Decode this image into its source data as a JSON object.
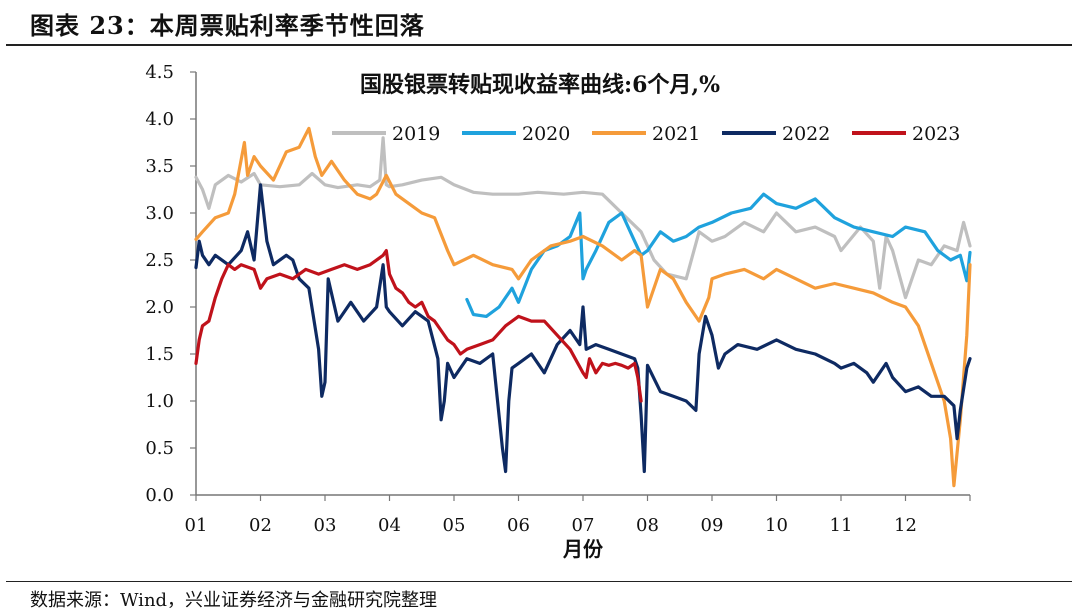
{
  "figure_title": "图表 23：本周票贴利率季节性回落",
  "source_note": "数据来源：Wind，兴业证券经济与金融研究院整理",
  "chart_data": {
    "type": "line",
    "title": "国股银票转贴现收益率曲线:6个月,%",
    "xlabel": "月份",
    "ylabel": "",
    "ylim": [
      0,
      4.5
    ],
    "xlim": [
      1,
      13
    ],
    "yticks": [
      "0.0",
      "0.5",
      "1.0",
      "1.5",
      "2.0",
      "2.5",
      "3.0",
      "3.5",
      "4.0",
      "4.5"
    ],
    "xticks": [
      "01",
      "02",
      "03",
      "04",
      "05",
      "06",
      "07",
      "08",
      "09",
      "10",
      "11",
      "12"
    ],
    "grid": false,
    "legend_position": "top",
    "series": [
      {
        "name": "2019",
        "color": "#bfbfbf",
        "x": [
          1.0,
          1.1,
          1.2,
          1.3,
          1.5,
          1.7,
          1.9,
          2.0,
          2.3,
          2.6,
          2.8,
          3.0,
          3.2,
          3.5,
          3.7,
          3.85,
          3.9,
          3.95,
          4.0,
          4.2,
          4.5,
          4.8,
          5.0,
          5.3,
          5.6,
          6.0,
          6.3,
          6.7,
          7.0,
          7.3,
          7.6,
          7.9,
          8.1,
          8.3,
          8.6,
          8.8,
          9.0,
          9.2,
          9.5,
          9.8,
          10.0,
          10.3,
          10.6,
          10.9,
          11.0,
          11.3,
          11.5,
          11.6,
          11.7,
          11.8,
          12.0,
          12.2,
          12.4,
          12.6,
          12.8,
          12.9,
          13.0
        ],
        "values": [
          3.38,
          3.25,
          3.05,
          3.3,
          3.4,
          3.33,
          3.42,
          3.3,
          3.28,
          3.3,
          3.42,
          3.3,
          3.27,
          3.3,
          3.28,
          3.35,
          3.8,
          3.3,
          3.28,
          3.3,
          3.35,
          3.38,
          3.3,
          3.22,
          3.2,
          3.2,
          3.22,
          3.2,
          3.22,
          3.2,
          3.0,
          2.8,
          2.5,
          2.35,
          2.3,
          2.8,
          2.7,
          2.75,
          2.9,
          2.8,
          3.0,
          2.8,
          2.85,
          2.75,
          2.6,
          2.85,
          2.7,
          2.2,
          2.75,
          2.6,
          2.1,
          2.5,
          2.45,
          2.65,
          2.6,
          2.9,
          2.65
        ]
      },
      {
        "name": "2020",
        "color": "#1fa2dd",
        "x": [
          5.2,
          5.3,
          5.5,
          5.7,
          5.9,
          6.0,
          6.2,
          6.4,
          6.6,
          6.8,
          6.95,
          7.0,
          7.05,
          7.2,
          7.4,
          7.6,
          7.8,
          7.9,
          8.0,
          8.2,
          8.4,
          8.6,
          8.8,
          9.0,
          9.3,
          9.6,
          9.8,
          10.0,
          10.3,
          10.6,
          10.9,
          11.2,
          11.5,
          11.8,
          12.0,
          12.3,
          12.5,
          12.7,
          12.85,
          12.95,
          13.0
        ],
        "values": [
          2.08,
          1.92,
          1.9,
          2.0,
          2.2,
          2.05,
          2.4,
          2.6,
          2.65,
          2.75,
          3.0,
          2.3,
          2.4,
          2.6,
          2.9,
          3.0,
          2.7,
          2.55,
          2.6,
          2.8,
          2.7,
          2.75,
          2.85,
          2.9,
          3.0,
          3.05,
          3.2,
          3.1,
          3.05,
          3.15,
          2.95,
          2.85,
          2.8,
          2.75,
          2.85,
          2.8,
          2.6,
          2.5,
          2.55,
          2.28,
          2.58
        ]
      },
      {
        "name": "2021",
        "color": "#f59b3a",
        "x": [
          1.0,
          1.1,
          1.3,
          1.5,
          1.6,
          1.75,
          1.8,
          1.9,
          2.0,
          2.2,
          2.4,
          2.6,
          2.75,
          2.85,
          2.95,
          3.1,
          3.3,
          3.5,
          3.7,
          3.8,
          3.95,
          4.1,
          4.3,
          4.5,
          4.7,
          4.9,
          5.0,
          5.3,
          5.6,
          5.9,
          6.0,
          6.2,
          6.5,
          6.8,
          7.0,
          7.3,
          7.6,
          7.8,
          7.9,
          8.0,
          8.2,
          8.4,
          8.6,
          8.8,
          8.95,
          9.0,
          9.2,
          9.5,
          9.8,
          10.0,
          10.3,
          10.6,
          10.9,
          11.2,
          11.5,
          11.8,
          12.0,
          12.2,
          12.4,
          12.6,
          12.7,
          12.75,
          12.85,
          12.95,
          13.0
        ],
        "values": [
          2.72,
          2.8,
          2.95,
          3.0,
          3.2,
          3.75,
          3.4,
          3.6,
          3.5,
          3.35,
          3.65,
          3.7,
          3.9,
          3.6,
          3.4,
          3.55,
          3.35,
          3.2,
          3.15,
          3.2,
          3.4,
          3.2,
          3.1,
          3.0,
          2.95,
          2.6,
          2.45,
          2.55,
          2.45,
          2.4,
          2.3,
          2.5,
          2.65,
          2.7,
          2.75,
          2.65,
          2.5,
          2.6,
          2.55,
          2.0,
          2.4,
          2.3,
          2.05,
          1.85,
          2.1,
          2.3,
          2.35,
          2.4,
          2.3,
          2.4,
          2.3,
          2.2,
          2.25,
          2.2,
          2.15,
          2.05,
          2.0,
          1.8,
          1.4,
          1.0,
          0.6,
          0.1,
          0.8,
          1.7,
          2.45
        ]
      },
      {
        "name": "2022",
        "color": "#0e2a62",
        "x": [
          1.0,
          1.05,
          1.1,
          1.2,
          1.3,
          1.5,
          1.7,
          1.8,
          1.9,
          2.0,
          2.1,
          2.2,
          2.4,
          2.5,
          2.6,
          2.75,
          2.9,
          2.95,
          3.0,
          3.05,
          3.2,
          3.4,
          3.6,
          3.8,
          3.9,
          3.95,
          4.0,
          4.2,
          4.4,
          4.6,
          4.75,
          4.8,
          4.85,
          4.9,
          5.0,
          5.2,
          5.4,
          5.6,
          5.75,
          5.8,
          5.85,
          5.9,
          6.0,
          6.2,
          6.4,
          6.6,
          6.8,
          6.95,
          7.0,
          7.05,
          7.2,
          7.4,
          7.6,
          7.8,
          7.85,
          7.9,
          7.95,
          8.0,
          8.2,
          8.4,
          8.6,
          8.75,
          8.8,
          8.9,
          9.0,
          9.1,
          9.2,
          9.4,
          9.7,
          10.0,
          10.3,
          10.6,
          10.9,
          11.0,
          11.2,
          11.4,
          11.5,
          11.7,
          11.8,
          12.0,
          12.2,
          12.4,
          12.6,
          12.75,
          12.8,
          12.85,
          12.95,
          13.0
        ],
        "values": [
          2.42,
          2.7,
          2.55,
          2.45,
          2.55,
          2.45,
          2.6,
          2.8,
          2.5,
          3.3,
          2.7,
          2.45,
          2.55,
          2.5,
          2.3,
          2.2,
          1.55,
          1.05,
          1.2,
          2.3,
          1.85,
          2.05,
          1.85,
          2.0,
          2.45,
          2.0,
          1.95,
          1.8,
          1.95,
          1.85,
          1.45,
          0.8,
          1.0,
          1.4,
          1.25,
          1.45,
          1.4,
          1.5,
          0.5,
          0.25,
          1.0,
          1.35,
          1.4,
          1.5,
          1.3,
          1.6,
          1.75,
          1.6,
          2.0,
          1.55,
          1.6,
          1.55,
          1.5,
          1.45,
          1.35,
          0.85,
          0.25,
          1.38,
          1.1,
          1.05,
          1.0,
          0.9,
          1.5,
          1.9,
          1.7,
          1.35,
          1.5,
          1.6,
          1.55,
          1.65,
          1.55,
          1.5,
          1.4,
          1.35,
          1.4,
          1.3,
          1.2,
          1.4,
          1.25,
          1.1,
          1.15,
          1.05,
          1.05,
          0.95,
          0.6,
          0.9,
          1.35,
          1.45
        ]
      },
      {
        "name": "2023",
        "color": "#c0121b",
        "x": [
          1.0,
          1.05,
          1.1,
          1.2,
          1.3,
          1.4,
          1.5,
          1.6,
          1.7,
          1.9,
          2.0,
          2.1,
          2.3,
          2.5,
          2.7,
          2.9,
          3.1,
          3.3,
          3.5,
          3.7,
          3.9,
          3.95,
          4.0,
          4.1,
          4.2,
          4.3,
          4.4,
          4.5,
          4.6,
          4.7,
          4.8,
          4.9,
          5.0,
          5.1,
          5.2,
          5.4,
          5.6,
          5.8,
          6.0,
          6.2,
          6.4,
          6.6,
          6.8,
          7.0,
          7.05,
          7.1,
          7.2,
          7.3,
          7.4,
          7.5,
          7.6,
          7.7,
          7.8,
          7.85,
          7.9
        ],
        "values": [
          1.4,
          1.65,
          1.8,
          1.85,
          2.1,
          2.3,
          2.45,
          2.4,
          2.45,
          2.4,
          2.2,
          2.3,
          2.35,
          2.3,
          2.4,
          2.35,
          2.4,
          2.45,
          2.4,
          2.45,
          2.55,
          2.6,
          2.35,
          2.2,
          2.15,
          2.05,
          2.0,
          2.05,
          1.9,
          1.85,
          1.75,
          1.65,
          1.6,
          1.5,
          1.55,
          1.6,
          1.65,
          1.8,
          1.9,
          1.85,
          1.85,
          1.7,
          1.55,
          1.3,
          1.25,
          1.45,
          1.3,
          1.4,
          1.38,
          1.4,
          1.38,
          1.35,
          1.4,
          1.25,
          1.0
        ]
      }
    ]
  }
}
